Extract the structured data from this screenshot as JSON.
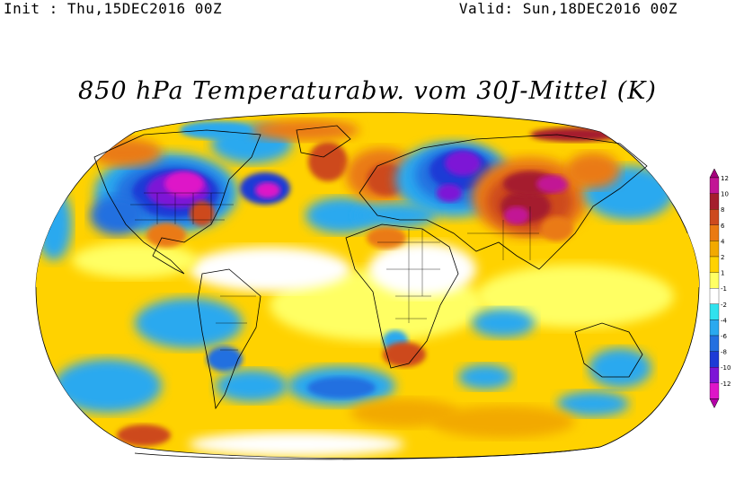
{
  "header": {
    "init": "Init : Thu,15DEC2016 00Z",
    "valid": "Valid: Sun,18DEC2016 00Z"
  },
  "title": "850 hPa Temperaturabw. vom 30J-Mittel (K)",
  "map": {
    "projection": "robinson",
    "field": "850 hPa temperature anomaly",
    "anomalies": [
      {
        "name": "north-america-cold",
        "value": -12
      },
      {
        "name": "labrador-cold",
        "value": -10
      },
      {
        "name": "west-russia-cold",
        "value": -12
      },
      {
        "name": "mongolia-warm",
        "value": 12
      },
      {
        "name": "greenland-warm",
        "value": 8
      },
      {
        "name": "north-atlantic-cold",
        "value": -6
      },
      {
        "name": "south-atlantic-cold",
        "value": -4
      },
      {
        "name": "south-pacific-cold",
        "value": -4
      },
      {
        "name": "australia-cold",
        "value": -4
      }
    ]
  },
  "colorbar": {
    "levels": [
      {
        "label": "12",
        "color": "#c21595"
      },
      {
        "label": "10",
        "color": "#a51e2d"
      },
      {
        "label": "8",
        "color": "#cd4a1e"
      },
      {
        "label": "6",
        "color": "#ea7a12"
      },
      {
        "label": "4",
        "color": "#f2a900"
      },
      {
        "label": "2",
        "color": "#ffd200"
      },
      {
        "label": "1",
        "color": "#ffff64"
      },
      {
        "label": "-1",
        "color": "#ffffff"
      },
      {
        "label": "-2",
        "color": "#30e2ee"
      },
      {
        "label": "-4",
        "color": "#2aa9ef"
      },
      {
        "label": "-6",
        "color": "#2470e0"
      },
      {
        "label": "-8",
        "color": "#1d3bd6"
      },
      {
        "label": "-10",
        "color": "#7d15d6"
      },
      {
        "label": "-12",
        "color": "#de16c8"
      }
    ],
    "top_color": "#a5007d",
    "bottom_color": "#b400a8"
  }
}
